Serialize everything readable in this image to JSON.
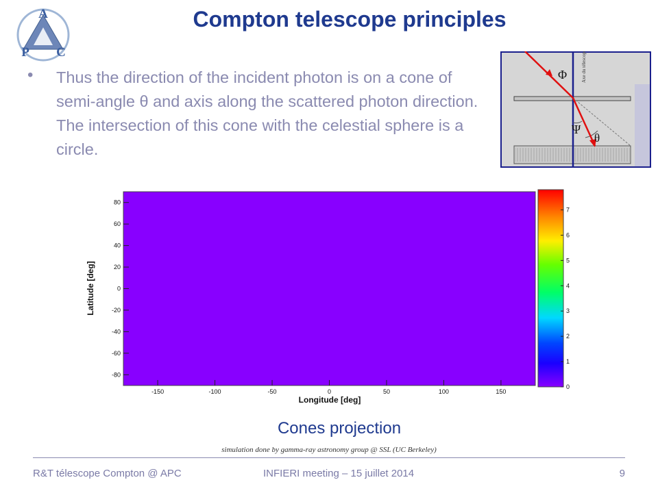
{
  "slide": {
    "title": "Compton telescope principles",
    "logo_letters": [
      "A",
      "P",
      "C"
    ],
    "bullet": "Thus the direction of the incident photon is on a cone of semi-angle θ and axis along the scattered photon direction. The intersection of this cone with the celestial sphere is a circle.",
    "diagram": {
      "phi": "Φ",
      "psi": "Ψ",
      "theta": "θ",
      "axis_label": "Axe du télescope"
    },
    "caption": "Cones projection",
    "credit": "simulation done by gamma-ray astronomy group @ SSL (UC Berkeley)"
  },
  "footer": {
    "left": "R&T télescope Compton @ APC",
    "center": "INFIERI meeting – 15 juillet 2014",
    "page": "9"
  },
  "chart_data": {
    "type": "heatmap",
    "xlabel": "Longitude [deg]",
    "ylabel": "Latitude [deg]",
    "xlim": [
      -180,
      180
    ],
    "ylim": [
      -90,
      90
    ],
    "x_ticks": [
      -150,
      -100,
      -50,
      0,
      50,
      100,
      150
    ],
    "y_ticks": [
      -80,
      -60,
      -40,
      -20,
      0,
      20,
      40,
      60,
      80
    ],
    "colorbar_ticks": [
      0,
      1,
      2,
      3,
      4,
      5,
      6,
      7
    ],
    "colorbar_range": [
      0,
      7.8
    ],
    "uniform_value": 0,
    "fill_color": "#8800ff"
  }
}
